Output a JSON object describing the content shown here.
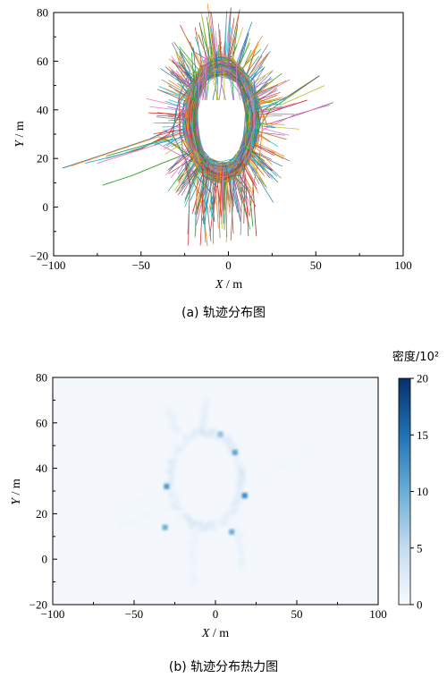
{
  "chart_data": [
    {
      "type": "line",
      "title": "",
      "caption": "(a)  轨迹分布图",
      "xlabel": "X/m",
      "ylabel": "Y/m",
      "xlim": [
        -100,
        100
      ],
      "ylim": [
        -20,
        80
      ],
      "xticks": [
        "−100",
        "−50",
        "0",
        "50",
        "100"
      ],
      "yticks": [
        "−20",
        "0",
        "20",
        "40",
        "60",
        "80"
      ],
      "grid": false,
      "legend": "none",
      "trajectory_count": 150,
      "roundabout_center": [
        -4,
        36
      ],
      "roundabout_radius": [
        18,
        22
      ],
      "series": [
        {
          "points": [
            [
              -95,
              16
            ],
            [
              -70,
              22
            ],
            [
              -45,
              28
            ],
            [
              -28,
              34
            ],
            [
              -18,
              48
            ],
            [
              -8,
              58
            ],
            [
              2,
              62
            ],
            [
              5,
              67
            ]
          ]
        },
        {
          "points": [
            [
              -90,
              17
            ],
            [
              -65,
              23
            ],
            [
              -40,
              29
            ],
            [
              -26,
              24
            ],
            [
              -14,
              14
            ],
            [
              -16,
              4
            ],
            [
              -14,
              -4
            ],
            [
              -12,
              -16
            ]
          ]
        },
        {
          "points": [
            [
              -72,
              9
            ],
            [
              -55,
              13
            ],
            [
              -38,
              18
            ],
            [
              -24,
              22
            ],
            [
              -5,
              16
            ],
            [
              10,
              24
            ],
            [
              24,
              40
            ],
            [
              52,
              54
            ]
          ]
        },
        {
          "points": [
            [
              -70,
              20
            ],
            [
              -50,
              24
            ],
            [
              -34,
              30
            ],
            [
              -22,
              46
            ],
            [
              -6,
              56
            ],
            [
              12,
              48
            ],
            [
              20,
              38
            ],
            [
              45,
              44
            ]
          ]
        },
        {
          "points": [
            [
              60,
              43
            ],
            [
              40,
              38
            ],
            [
              22,
              34
            ],
            [
              16,
              46
            ],
            [
              8,
              56
            ],
            [
              -6,
              58
            ],
            [
              -20,
              64
            ],
            [
              -22,
              68
            ]
          ]
        },
        {
          "points": [
            [
              52,
              54
            ],
            [
              35,
              46
            ],
            [
              20,
              40
            ],
            [
              14,
              26
            ],
            [
              8,
              18
            ],
            [
              14,
              10
            ],
            [
              15,
              -2
            ],
            [
              16,
              -12
            ]
          ]
        },
        {
          "points": [
            [
              58,
              42
            ],
            [
              38,
              38
            ],
            [
              20,
              32
            ],
            [
              10,
              18
            ],
            [
              -8,
              14
            ],
            [
              -24,
              20
            ],
            [
              -40,
              26
            ],
            [
              -75,
              18
            ]
          ]
        },
        {
          "points": [
            [
              -28,
              64
            ],
            [
              -24,
              56
            ],
            [
              -22,
              48
            ],
            [
              -28,
              36
            ],
            [
              -26,
              22
            ],
            [
              -20,
              10
            ],
            [
              -12,
              0
            ],
            [
              -10,
              -14
            ]
          ]
        },
        {
          "points": [
            [
              -30,
              64
            ],
            [
              -26,
              54
            ],
            [
              -16,
              56
            ],
            [
              -2,
              58
            ],
            [
              10,
              54
            ],
            [
              18,
              44
            ],
            [
              30,
              42
            ],
            [
              55,
              50
            ]
          ]
        },
        {
          "points": [
            [
              -4,
              66
            ],
            [
              -6,
              58
            ],
            [
              -20,
              52
            ],
            [
              -30,
              40
            ],
            [
              -32,
              28
            ],
            [
              -44,
              26
            ],
            [
              -60,
              22
            ],
            [
              -82,
              18
            ]
          ]
        },
        {
          "points": [
            [
              -8,
              -6
            ],
            [
              -10,
              6
            ],
            [
              -22,
              16
            ],
            [
              -32,
              30
            ],
            [
              -28,
              46
            ],
            [
              -22,
              56
            ],
            [
              -25,
              60
            ],
            [
              -28,
              65
            ]
          ]
        },
        {
          "points": [
            [
              12,
              -4
            ],
            [
              14,
              8
            ],
            [
              18,
              22
            ],
            [
              20,
              38
            ],
            [
              12,
              50
            ],
            [
              2,
              58
            ],
            [
              -6,
              62
            ],
            [
              -4,
              68
            ]
          ]
        },
        {
          "points": [
            [
              14,
              -8
            ],
            [
              12,
              6
            ],
            [
              2,
              14
            ],
            [
              -12,
              14
            ],
            [
              -24,
              22
            ],
            [
              -36,
              28
            ],
            [
              -55,
              24
            ],
            [
              -70,
              21
            ]
          ]
        },
        {
          "points": [
            [
              -2,
              68
            ],
            [
              -2,
              60
            ],
            [
              -16,
              54
            ],
            [
              -28,
              44
            ],
            [
              -28,
              30
            ],
            [
              -18,
              16
            ],
            [
              -6,
              8
            ],
            [
              -4,
              -4
            ]
          ]
        }
      ]
    },
    {
      "type": "heatmap",
      "title": "",
      "caption": "(b)  轨迹分布热力图",
      "xlabel": "X/m",
      "ylabel": "Y/m",
      "xlim": [
        -100,
        100
      ],
      "ylim": [
        -20,
        80
      ],
      "xticks": [
        "−100",
        "−50",
        "0",
        "50",
        "100"
      ],
      "yticks": [
        "−20",
        "0",
        "20",
        "40",
        "60",
        "80"
      ],
      "colorscale": [
        "#f7fbff",
        "#c6dbef",
        "#6baed6",
        "#2171b5",
        "#08306b"
      ],
      "colorbar": {
        "title": "密度/10²",
        "range": [
          0,
          20
        ],
        "ticks": [
          "0",
          "5",
          "10",
          "15",
          "20"
        ]
      },
      "hotspots": [
        {
          "x": -30,
          "y": 32,
          "value": 12
        },
        {
          "x": -31,
          "y": 14,
          "value": 10
        },
        {
          "x": 18,
          "y": 28,
          "value": 13
        },
        {
          "x": 12,
          "y": 47,
          "value": 11
        },
        {
          "x": 10,
          "y": 12,
          "value": 10
        },
        {
          "x": 3,
          "y": 55,
          "value": 8
        }
      ]
    }
  ]
}
